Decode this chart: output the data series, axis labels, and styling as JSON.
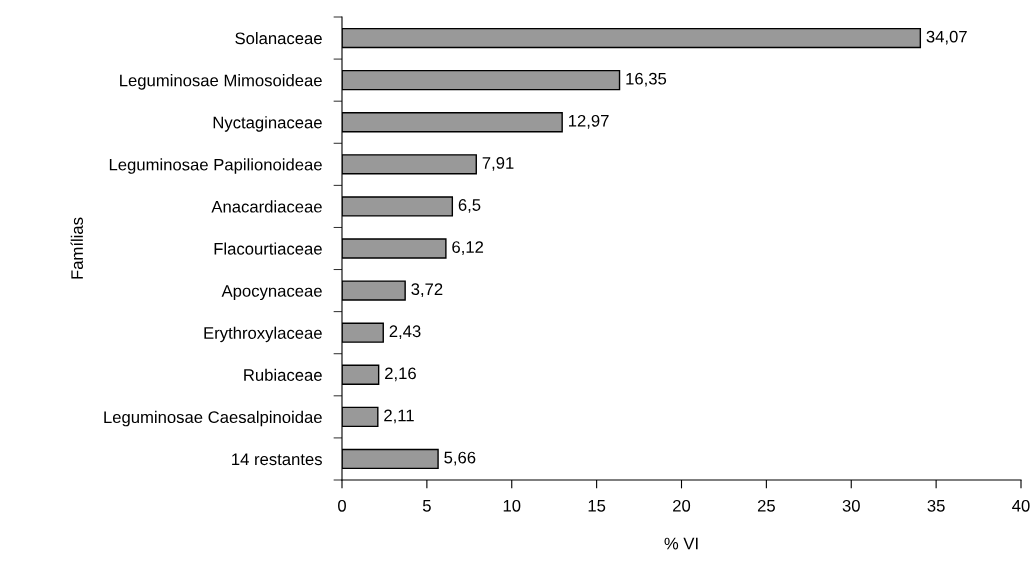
{
  "chart_data": {
    "type": "bar",
    "orientation": "horizontal",
    "xlabel": "% VI",
    "ylabel": "Famílias",
    "categories": [
      "Solanaceae",
      "Leguminosae Mimosoideae",
      "Nyctaginaceae",
      "Leguminosae Papilionoideae",
      "Anacardiaceae",
      "Flacourtiaceae",
      "Apocynaceae",
      "Erythroxylaceae",
      "Rubiaceae",
      "Leguminosae Caesalpinoidae",
      "14 restantes"
    ],
    "values": [
      34.07,
      16.35,
      12.97,
      7.91,
      6.5,
      6.12,
      3.72,
      2.43,
      2.16,
      2.11,
      5.66
    ],
    "value_labels": [
      "34,07",
      "16,35",
      "12,97",
      "7,91",
      "6,5",
      "6,12",
      "3,72",
      "2,43",
      "2,16",
      "2,11",
      "5,66"
    ],
    "color": "#999999",
    "xlim": [
      0,
      40
    ],
    "xticks": [
      0,
      5,
      10,
      15,
      20,
      25,
      30,
      35,
      40
    ],
    "grid": false,
    "legend": false
  }
}
